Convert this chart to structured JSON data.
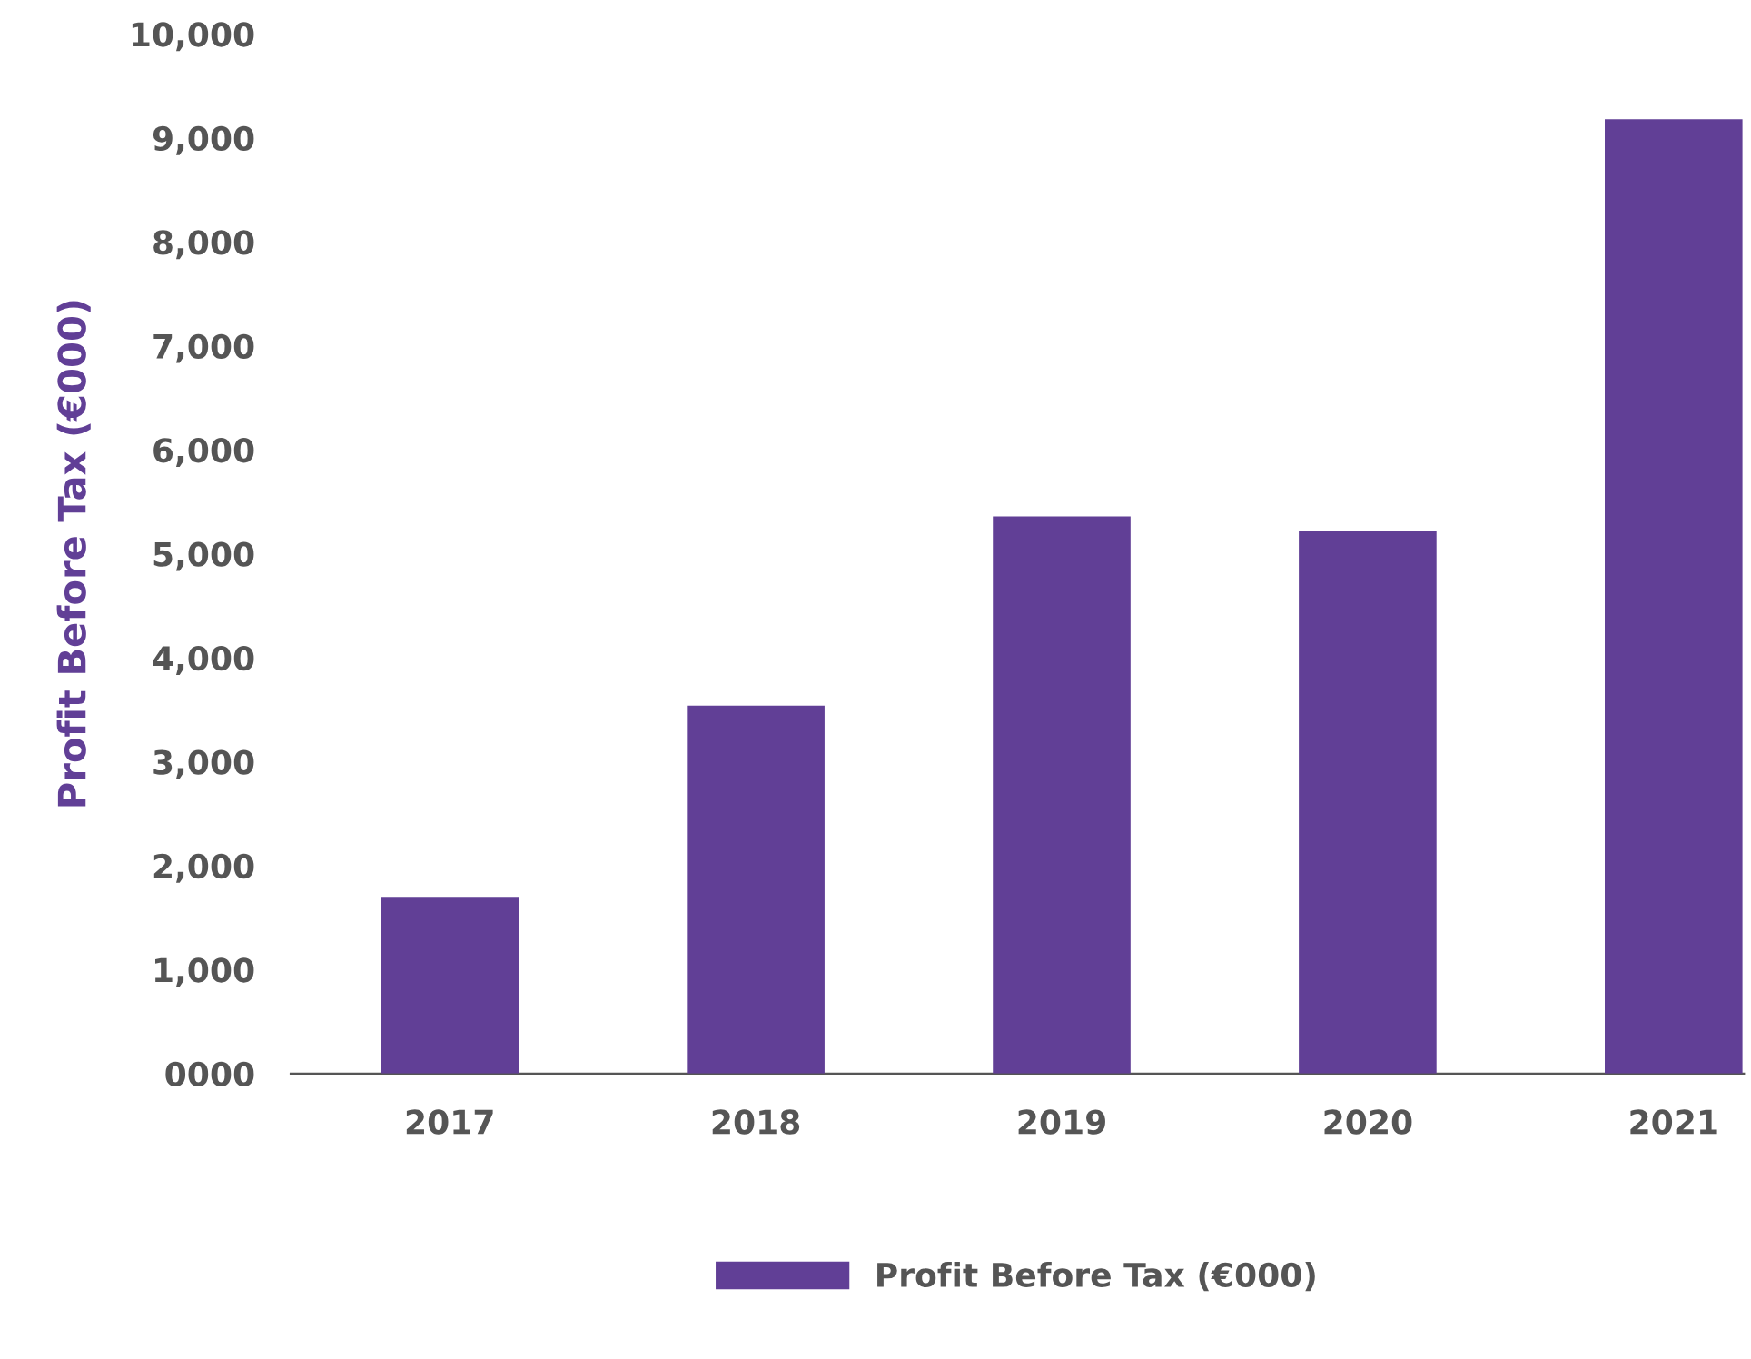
{
  "chart_data": {
    "type": "bar",
    "ylabel": "Profit Before Tax (€000)",
    "categories": [
      "2017",
      "2018",
      "2019",
      "2020",
      "2021"
    ],
    "series": [
      {
        "name": "Profit Before Tax (€000)",
        "color": "#613f96",
        "values": [
          1700,
          3540,
          5360,
          5220,
          9180
        ]
      }
    ],
    "ylim": [
      0,
      10000
    ],
    "yticks": [
      {
        "value": 0,
        "label": "0000"
      },
      {
        "value": 1000,
        "label": "1,000"
      },
      {
        "value": 2000,
        "label": "2,000"
      },
      {
        "value": 3000,
        "label": "3,000"
      },
      {
        "value": 4000,
        "label": "4,000"
      },
      {
        "value": 5000,
        "label": "5,000"
      },
      {
        "value": 6000,
        "label": "6,000"
      },
      {
        "value": 7000,
        "label": "7,000"
      },
      {
        "value": 8000,
        "label": "8,000"
      },
      {
        "value": 9000,
        "label": "9,000"
      },
      {
        "value": 10000,
        "label": "10,000"
      }
    ],
    "grid": false,
    "legend": "bottom"
  }
}
